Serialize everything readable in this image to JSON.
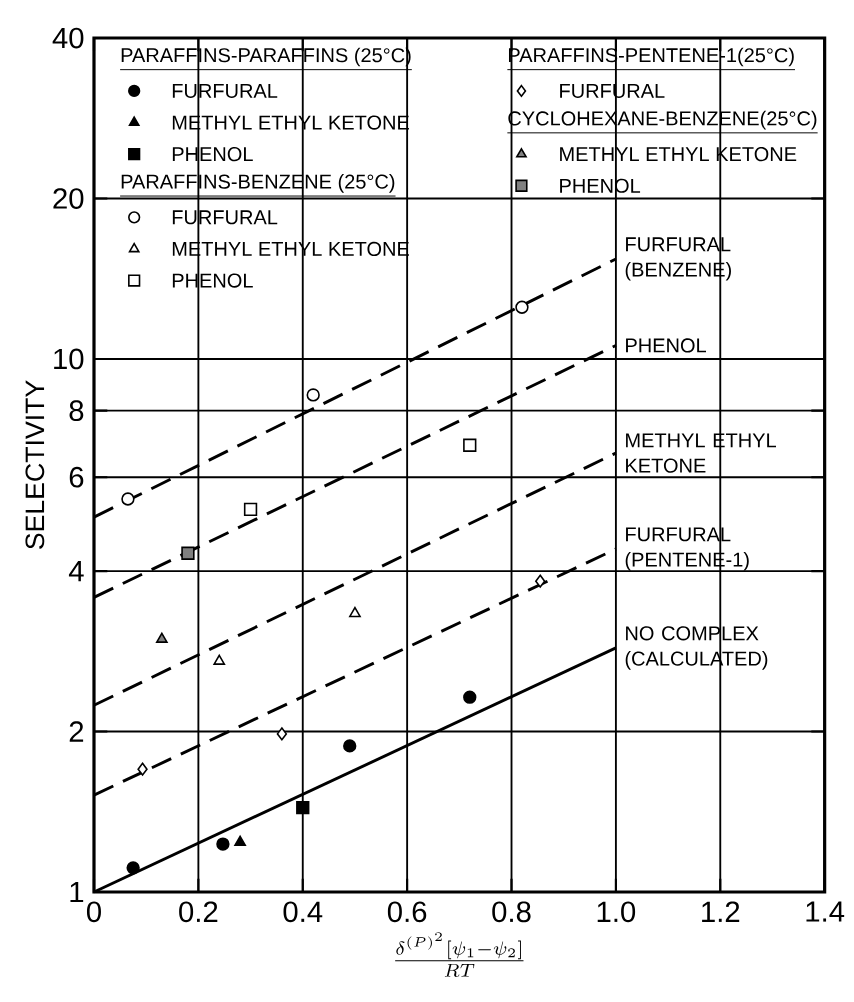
{
  "chart_data": {
    "type": "scatter",
    "xlabel": "\\frac{\\delta^{(P)^2}\\left[\\psi_1 - \\psi_2\\right]}{RT}",
    "ylabel": "SELECTIVITY",
    "log": "y",
    "grid": true,
    "legend": "top",
    "xlim": [
      0,
      1.4
    ],
    "xticks": [
      0,
      0.2,
      0.4,
      0.6,
      0.8,
      {
        "value": 1.0,
        "label": "1.0"
      },
      1.2,
      1.4
    ],
    "ylim": [
      1,
      40
    ],
    "yticks": [
      1,
      2,
      4,
      6,
      8,
      10,
      20,
      40
    ],
    "annotations": [
      "PARAFFINS-PARAFFINS (25°C)",
      "PARAFFINS-BENZENE (25°C)",
      "PARAFFINS-PENTENE-1(25°C)",
      "CYCLOHEXANE-BENZENE(25°C)"
    ],
    "series": [
      {
        "name": "FURFURAL",
        "color": "#000000",
        "marker": "circle",
        "x": [
          0.075,
          0.247,
          0.49,
          0.72
        ],
        "values": [
          1.11,
          1.23,
          1.88,
          2.32
        ]
      },
      {
        "name": "METHYL ETHYL KETONE",
        "color": "#000000",
        "marker": "triangle",
        "x": [
          0.28
        ],
        "values": [
          1.24
        ]
      },
      {
        "name": "PHENOL",
        "color": "#000000",
        "marker": "square",
        "x": [
          0.4
        ],
        "values": [
          1.44
        ]
      },
      {
        "name": "FURFURAL",
        "color": "#000000",
        "marker": "circle",
        "x": [
          0.065,
          0.42,
          0.82
        ],
        "values": [
          5.46,
          8.56,
          12.5
        ]
      },
      {
        "name": "METHYL ETHYL KETONE",
        "color": "#000000",
        "marker": "triangle",
        "x": [
          0.24,
          0.5
        ],
        "values": [
          2.71,
          3.33
        ]
      },
      {
        "name": "PHENOL",
        "color": "#000000",
        "marker": "square",
        "x": [
          0.3,
          0.72
        ],
        "values": [
          5.22,
          6.89
        ]
      },
      {
        "name": "FURFURAL",
        "color": "#000000",
        "marker": "diamond",
        "x": [
          0.093,
          0.36,
          0.855
        ],
        "values": [
          1.7,
          1.98,
          3.83
        ]
      },
      {
        "name": "METHYL ETHYL KETONE",
        "color": "#000000",
        "marker": "triangle",
        "x": [
          0.13
        ],
        "values": [
          2.98
        ]
      },
      {
        "name": "PHENOL",
        "color": "#000000",
        "marker": "square",
        "x": [
          0.18
        ],
        "values": [
          4.32
        ]
      },
      {
        "name": "FURFURAL (BENZENE)",
        "type": "line",
        "color": "#000000",
        "marker": "none",
        "line_style": "dashed",
        "x": [
          0,
          1.0
        ],
        "values": [
          5.05,
          15.4
        ]
      },
      {
        "name": "PHENOL",
        "type": "line",
        "color": "#000000",
        "marker": "none",
        "line_style": "dashed",
        "x": [
          0,
          1.0
        ],
        "values": [
          3.57,
          10.6
        ]
      },
      {
        "name": "METHYL ETHYL KETONE",
        "type": "line",
        "color": "#000000",
        "marker": "none",
        "line_style": "dashed",
        "x": [
          0,
          1.0
        ],
        "values": [
          2.24,
          6.66
        ]
      },
      {
        "name": "FURFURAL (PENTENE-1)",
        "type": "line",
        "color": "#000000",
        "marker": "none",
        "line_style": "dashed",
        "x": [
          0,
          1.0
        ],
        "values": [
          1.52,
          4.4
        ]
      },
      {
        "name": "NO COMPLEX (CALCULATED)",
        "type": "line",
        "color": "#000000",
        "marker": "none",
        "line_style": "solid",
        "x": [
          0,
          1.0
        ],
        "values": [
          1.0,
          2.87
        ]
      }
    ]
  }
}
